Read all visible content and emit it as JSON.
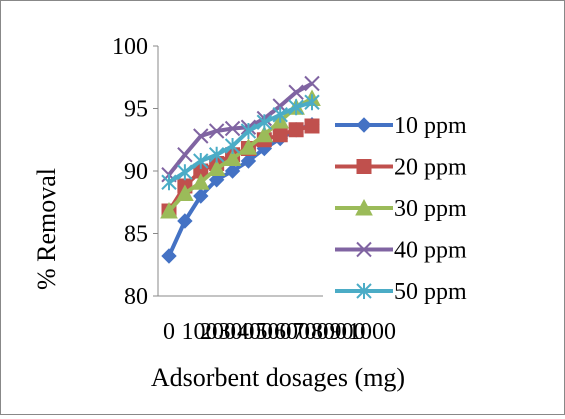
{
  "chart_data": {
    "type": "line",
    "title": "",
    "xlabel": "Adsorbent dosages (mg)",
    "ylabel": "% Removal",
    "ylim": [
      80,
      100
    ],
    "y_ticks": [
      "80",
      "85",
      "90",
      "95",
      "100"
    ],
    "x_ticks": [
      "0",
      "100",
      "200",
      "300",
      "400",
      "500",
      "600",
      "700",
      "800",
      "900",
      "1000"
    ],
    "x": [
      100,
      200,
      300,
      400,
      500,
      600,
      700,
      800,
      900,
      1000
    ],
    "grid": false,
    "legend_position": "right",
    "series": [
      {
        "name": "10 ppm",
        "color": "#4472C4",
        "marker": "diamond",
        "values": [
          83.2,
          86.0,
          88.0,
          89.3,
          90.0,
          90.8,
          91.8,
          92.6,
          93.3,
          93.7
        ]
      },
      {
        "name": "20 ppm",
        "color": "#C0504D",
        "marker": "square",
        "values": [
          86.8,
          88.8,
          90.0,
          90.6,
          91.3,
          91.8,
          92.5,
          92.9,
          93.3,
          93.6
        ]
      },
      {
        "name": "30 ppm",
        "color": "#9BBB59",
        "marker": "triangle",
        "values": [
          86.8,
          88.2,
          89.1,
          90.2,
          91.0,
          91.9,
          92.9,
          94.0,
          95.1,
          95.8
        ]
      },
      {
        "name": "40 ppm",
        "color": "#8064A2",
        "marker": "x",
        "values": [
          89.7,
          91.3,
          92.8,
          93.2,
          93.4,
          93.5,
          94.2,
          95.2,
          96.3,
          97.0
        ]
      },
      {
        "name": "50 ppm",
        "color": "#4BACC6",
        "marker": "star",
        "values": [
          89.1,
          89.9,
          90.8,
          91.3,
          92.0,
          93.2,
          93.9,
          94.5,
          95.1,
          95.5
        ]
      }
    ]
  }
}
